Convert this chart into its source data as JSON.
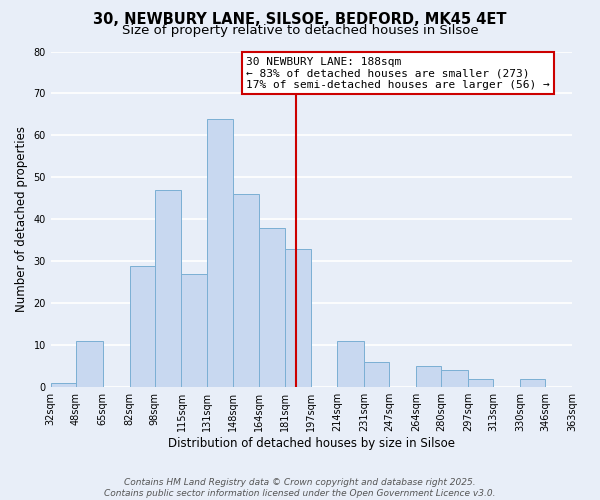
{
  "title": "30, NEWBURY LANE, SILSOE, BEDFORD, MK45 4ET",
  "subtitle": "Size of property relative to detached houses in Silsoe",
  "xlabel": "Distribution of detached houses by size in Silsoe",
  "ylabel": "Number of detached properties",
  "bin_edges": [
    32,
    48,
    65,
    82,
    98,
    115,
    131,
    148,
    164,
    181,
    197,
    214,
    231,
    247,
    264,
    280,
    297,
    313,
    330,
    346,
    363
  ],
  "counts": [
    1,
    11,
    0,
    29,
    47,
    27,
    64,
    46,
    38,
    33,
    0,
    11,
    6,
    0,
    5,
    4,
    2,
    0,
    2,
    0
  ],
  "bar_color": "#c8d8f0",
  "bar_edge_color": "#7bafd4",
  "bg_color": "#e8eef8",
  "grid_color": "#ffffff",
  "vline_x": 188,
  "vline_color": "#cc0000",
  "annotation_line1": "30 NEWBURY LANE: 188sqm",
  "annotation_line2": "← 83% of detached houses are smaller (273)",
  "annotation_line3": "17% of semi-detached houses are larger (56) →",
  "tick_labels": [
    "32sqm",
    "48sqm",
    "65sqm",
    "82sqm",
    "98sqm",
    "115sqm",
    "131sqm",
    "148sqm",
    "164sqm",
    "181sqm",
    "197sqm",
    "214sqm",
    "231sqm",
    "247sqm",
    "264sqm",
    "280sqm",
    "297sqm",
    "313sqm",
    "330sqm",
    "346sqm",
    "363sqm"
  ],
  "ylim": [
    0,
    80
  ],
  "yticks": [
    0,
    10,
    20,
    30,
    40,
    50,
    60,
    70,
    80
  ],
  "footer1": "Contains HM Land Registry data © Crown copyright and database right 2025.",
  "footer2": "Contains public sector information licensed under the Open Government Licence v3.0.",
  "title_fontsize": 10.5,
  "subtitle_fontsize": 9.5,
  "axis_label_fontsize": 8.5,
  "tick_fontsize": 7,
  "annotation_fontsize": 8,
  "footer_fontsize": 6.5
}
